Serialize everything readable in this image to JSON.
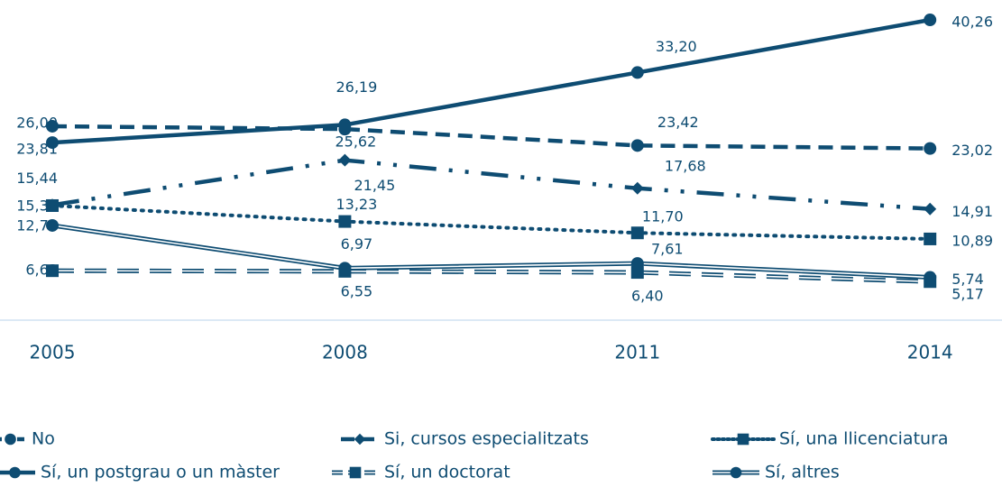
{
  "chart_data": {
    "type": "line",
    "categories": [
      "2005",
      "2008",
      "2011",
      "2014"
    ],
    "ylim": [
      0,
      45
    ],
    "series": [
      {
        "name": "No",
        "color": "#0e4c72",
        "line_style": "dashed",
        "marker": "circle",
        "values": [
          26.0,
          25.62,
          23.42,
          23.02
        ],
        "value_labels": [
          "26,00",
          "25,62",
          "23,42",
          "23,02"
        ]
      },
      {
        "name": "Si, cursos especialitzats",
        "color": "#0e4c72",
        "line_style": "dash-dot",
        "marker": "diamond",
        "values": [
          15.44,
          21.45,
          17.68,
          14.91
        ],
        "value_labels": [
          "15,44",
          "21,45",
          "17,68",
          "14,91"
        ]
      },
      {
        "name": "Sí, una llicenciatura",
        "color": "#0e4c72",
        "line_style": "dotted",
        "marker": "square",
        "values": [
          15.36,
          13.23,
          11.7,
          10.89
        ],
        "value_labels": [
          "15,36",
          "13,23",
          "11,70",
          "10,89"
        ]
      },
      {
        "name": "Sí, un postgrau o un màster",
        "color": "#0e4c72",
        "line_style": "solid",
        "marker": "circle",
        "values": [
          23.81,
          26.19,
          33.2,
          40.26
        ],
        "value_labels": [
          "23,81",
          "26,19",
          "33,20",
          "40,26"
        ]
      },
      {
        "name": "Sí, un doctorat",
        "color": "#0e4c72",
        "line_style": "double-dashed",
        "marker": "square",
        "values": [
          6.63,
          6.55,
          6.4,
          5.17
        ],
        "value_labels": [
          "6,63",
          "6,55",
          "6,40",
          "5,17"
        ]
      },
      {
        "name": "Sí, altres",
        "color": "#0e4c72",
        "line_style": "double",
        "marker": "circle",
        "values": [
          12.7,
          6.97,
          7.61,
          5.74
        ],
        "value_labels": [
          "12,70",
          "6,97",
          "7,61",
          "5,74"
        ]
      }
    ],
    "legend": "bottom"
  }
}
